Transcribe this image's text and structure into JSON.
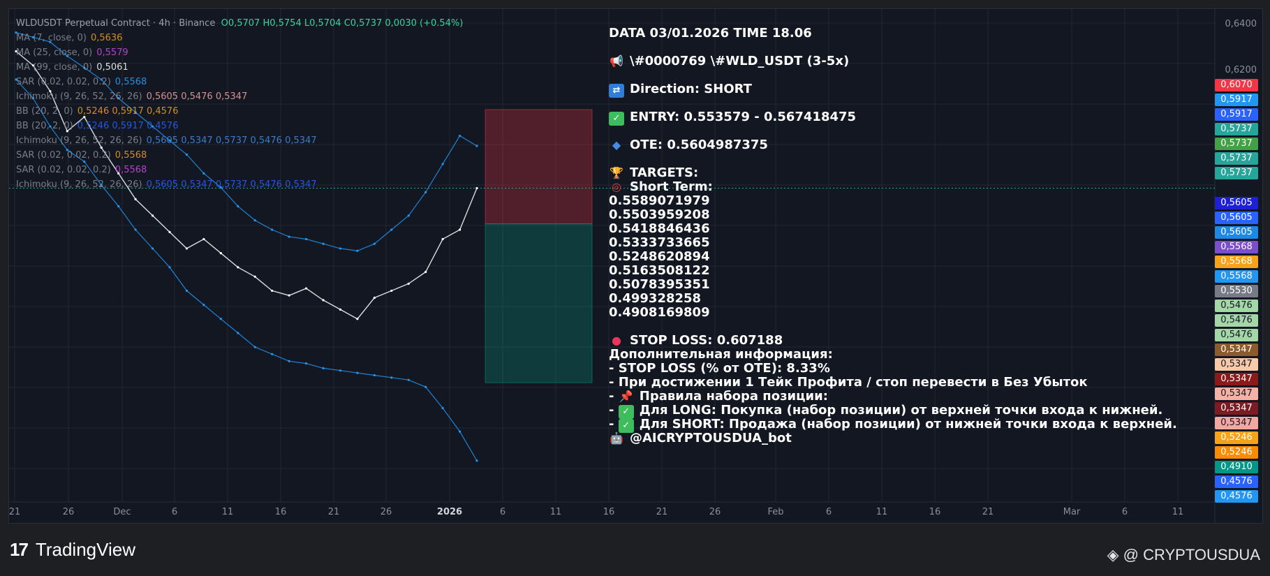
{
  "header": {
    "symbol": "WLDUSDT Perpetual Contract · 4h · Binance",
    "ohlc": "O0,5707  H0,5754  L0,5704  C0,5737  0,0030 (+0.54%)"
  },
  "legend": [
    {
      "label": "MA (7, close, 0)",
      "value": "0,5636",
      "color": "#f7a21b"
    },
    {
      "label": "MA (25, close, 0)",
      "value": "0,5579",
      "color": "#d24ce6"
    },
    {
      "label": "MA (99, close, 0)",
      "value": "0,5061",
      "color": "#ffffff"
    },
    {
      "label": "SAR (0.02, 0.02, 0.2)",
      "value": "0,5568",
      "color": "#2ba4ff"
    },
    {
      "label": "Ichimoku (9, 26, 52, 26, 26)",
      "value": "0,5605  0,5476  0,5347",
      "color": "#f4a7a0"
    },
    {
      "label": "BB (20, 2, 0)",
      "value": "0,5246  0,5917  0,4576",
      "color": "#f7a21b"
    },
    {
      "label": "BB (20, 2, 0)",
      "value": "0,5246  0,5917  0,4576",
      "color": "#2962ff"
    },
    {
      "label": "Ichimoku (9, 26, 52, 26, 26)",
      "value": "0,5605  0,5347  0,5737  0,5476  0,5347",
      "color": "#3f8ee8"
    },
    {
      "label": "SAR (0.02, 0.02, 0.2)",
      "value": "0,5568",
      "color": "#f7a21b"
    },
    {
      "label": "SAR (0.02, 0.02, 0.2)",
      "value": "0,5568",
      "color": "#d24ce6"
    },
    {
      "label": "Ichimoku (9, 26, 52, 26, 26)",
      "value": "0,5605  0,5347  0,5737  0,5476  0,5347",
      "color": "#2962ff"
    }
  ],
  "signal": {
    "date_line": "DATA 03/01.2026 TIME 18.06",
    "tag_line": "\\#0000769 \\#WLD_USDT (3-5x)",
    "direction": "Direction: SHORT",
    "entry": "ENTRY: 0.553579 - 0.567418475",
    "ote": "OTE: 0.5604987375",
    "targets_title": "TARGETS:",
    "short_term": "Short Term:",
    "targets": [
      "0.5589071979",
      "0.5503959208",
      "0.5418846436",
      "0.5333733665",
      "0.5248620894",
      "0.5163508122",
      "0.5078395351",
      "0.499328258",
      "0.4908169809"
    ],
    "stop_loss": "STOP LOSS: 0.607188",
    "extra_title": "Дополнительная информация:",
    "extra_1": "- STOP LOSS (% от OTE): 8.33%",
    "extra_2": "- При достижении 1 Тейк Профита / стоп перевести в Без Убыток",
    "extra_3": "Правила набора позиции:",
    "extra_4": "Для LONG: Покупка (набор позиции) от верхней точки входа к нижней.",
    "extra_5": "Для SHORT: Продажа (набор позиции) от нижней точки входа к верхней.",
    "bot": "@AICRYPTOUSDUA_bot",
    "icons": {
      "announce": "megaphone-icon",
      "direction": "arrows-icon",
      "entry": "check-icon",
      "ote": "diamond-icon",
      "targets": "trophy-icon",
      "short_term": "target-icon",
      "stop": "red-circle-icon",
      "pin": "pin-icon",
      "bot": "robot-icon"
    }
  },
  "price_axis": {
    "plain": [
      "0,6400",
      "0,6200"
    ],
    "tags": [
      {
        "text": "0,6070",
        "color": "#f23645"
      },
      {
        "text": "0,5917",
        "color": "#2196f3"
      },
      {
        "text": "0,5917",
        "color": "#2962ff"
      },
      {
        "text": "0,5737",
        "color": "#26a69a"
      },
      {
        "text": "0,5737",
        "color": "#43a047"
      },
      {
        "text": "0,5737",
        "color": "#26a69a"
      },
      {
        "text": "0,5737",
        "color": "#26a69a"
      },
      {
        "text": "0,5605",
        "color": "#1f1fd6"
      },
      {
        "text": "0,5605",
        "color": "#2962ff"
      },
      {
        "text": "0,5605",
        "color": "#1e88e5"
      },
      {
        "text": "0,5568",
        "color": "#7b4fc9"
      },
      {
        "text": "0,5568",
        "color": "#f7a21b"
      },
      {
        "text": "0,5568",
        "color": "#2196f3"
      },
      {
        "text": "0,5530",
        "color": "#787b86"
      },
      {
        "text": "0,5476",
        "color": "#a5d6a7"
      },
      {
        "text": "0,5476",
        "color": "#a5d6a7"
      },
      {
        "text": "0,5476",
        "color": "#a5d6a7"
      },
      {
        "text": "0,5347",
        "color": "#8d5a2b"
      },
      {
        "text": "0,5347",
        "color": "#f8c9a8"
      },
      {
        "text": "0,5347",
        "color": "#8b1a1a"
      },
      {
        "text": "0,5347",
        "color": "#f4b1a6"
      },
      {
        "text": "0,5347",
        "color": "#7d1b24"
      },
      {
        "text": "0,5347",
        "color": "#f4a7a0"
      },
      {
        "text": "0,5246",
        "color": "#f7a21b"
      },
      {
        "text": "0,5246",
        "color": "#fb8c00"
      },
      {
        "text": "0,4910",
        "color": "#009688"
      },
      {
        "text": "0,4576",
        "color": "#2962ff"
      },
      {
        "text": "0,4576",
        "color": "#2196f3"
      }
    ]
  },
  "time_axis": [
    "21",
    "26",
    "Dec",
    "6",
    "11",
    "16",
    "21",
    "26",
    "2026",
    "6",
    "11",
    "16",
    "21",
    "26",
    "Feb",
    "6",
    "11",
    "16",
    "21",
    "Mar",
    "6",
    "11"
  ],
  "chart_data": {
    "type": "line",
    "title": "",
    "xlabel": "",
    "ylabel": "",
    "ylim": [
      0.44,
      0.65
    ],
    "x_axis": [
      "21",
      "26",
      "Dec",
      "6",
      "11",
      "16",
      "21",
      "26",
      "2026",
      "6",
      "11",
      "16",
      "21",
      "26",
      "Feb",
      "6",
      "11",
      "16",
      "21",
      "Mar",
      "6",
      "11"
    ],
    "series": [
      {
        "name": "Close",
        "values": [
          0.632,
          0.626,
          0.615,
          0.598,
          0.604,
          0.591,
          0.58,
          0.569,
          0.562,
          0.555,
          0.548,
          0.552,
          0.546,
          0.54,
          0.536,
          0.53,
          0.528,
          0.531,
          0.526,
          0.522,
          0.518,
          0.527,
          0.53,
          0.533,
          0.538,
          0.552,
          0.556,
          0.5737
        ]
      },
      {
        "name": "BB upper",
        "values": [
          0.64,
          0.638,
          0.636,
          0.63,
          0.625,
          0.62,
          0.612,
          0.606,
          0.6,
          0.594,
          0.588,
          0.58,
          0.574,
          0.566,
          0.56,
          0.556,
          0.553,
          0.552,
          0.55,
          0.548,
          0.547,
          0.55,
          0.556,
          0.562,
          0.572,
          0.584,
          0.596,
          0.5917
        ]
      },
      {
        "name": "BB lower",
        "values": [
          0.62,
          0.612,
          0.6,
          0.59,
          0.585,
          0.575,
          0.566,
          0.556,
          0.548,
          0.54,
          0.53,
          0.524,
          0.518,
          0.512,
          0.506,
          0.503,
          0.5,
          0.499,
          0.497,
          0.496,
          0.495,
          0.494,
          0.493,
          0.492,
          0.489,
          0.48,
          0.47,
          0.4576
        ]
      }
    ],
    "trade_zones": {
      "stop_top": 0.607188,
      "entry_top": 0.567418475,
      "entry_bottom": 0.553579,
      "target_bottom": 0.4908169809,
      "current": 0.5737
    },
    "grid": true
  }
}
